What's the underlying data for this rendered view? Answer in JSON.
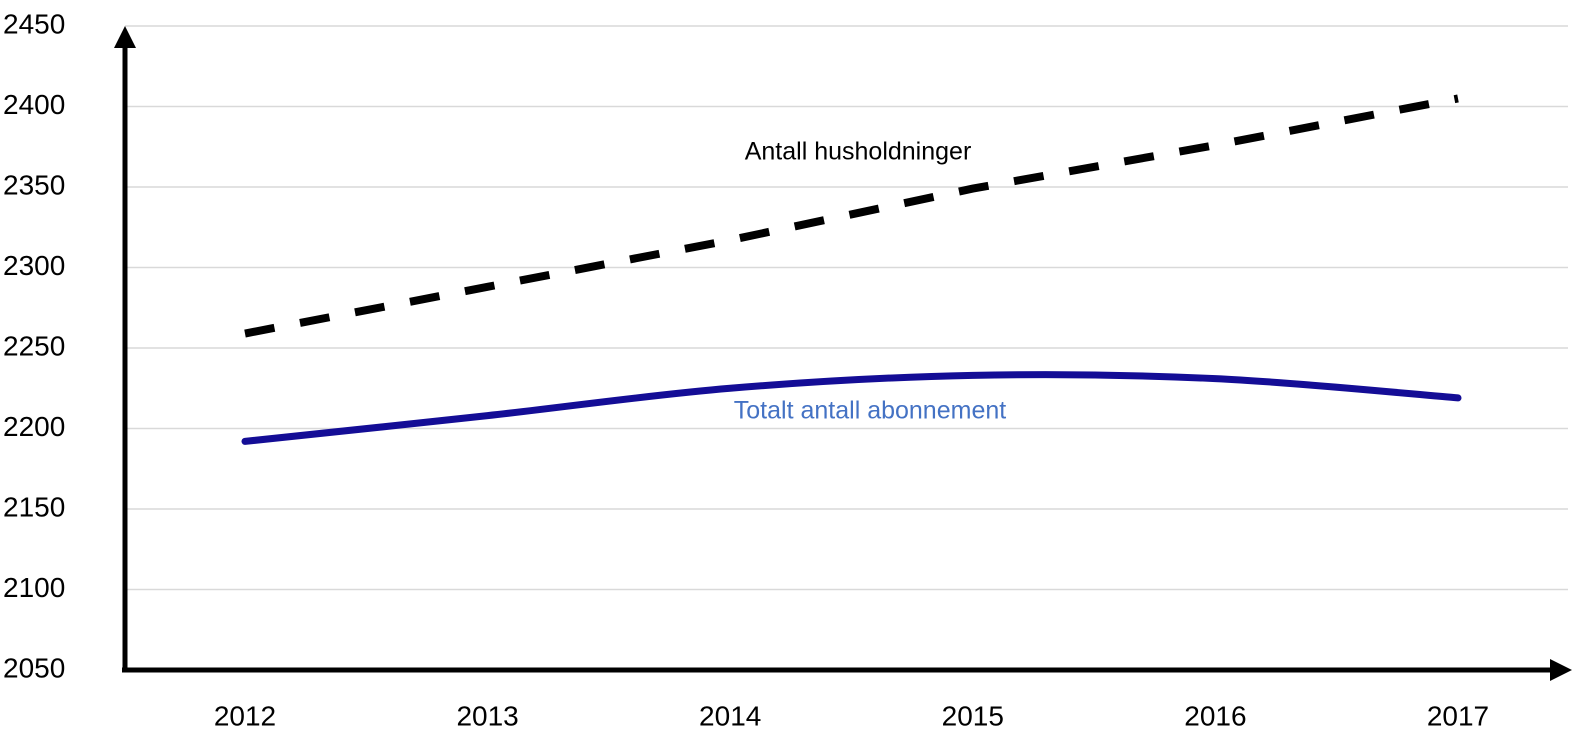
{
  "chart_data": {
    "type": "line",
    "categories": [
      "2012",
      "2013",
      "2014",
      "2015",
      "2016",
      "2017"
    ],
    "series": [
      {
        "name": "Antall husholdninger",
        "color": "#000000",
        "dashed": true,
        "values": [
          2259,
          2288,
          2317,
          2349,
          2376,
          2405
        ]
      },
      {
        "name": "Totalt antall abonnement",
        "color": "#140d96",
        "label_color": "#4472c4",
        "dashed": false,
        "smooth": true,
        "values": [
          2192,
          2208,
          2225,
          2233,
          2231,
          2219
        ]
      }
    ],
    "ylim": [
      2050,
      2450
    ],
    "yticks": [
      2050,
      2100,
      2150,
      2200,
      2250,
      2300,
      2350,
      2400,
      2450
    ],
    "grid": true
  }
}
